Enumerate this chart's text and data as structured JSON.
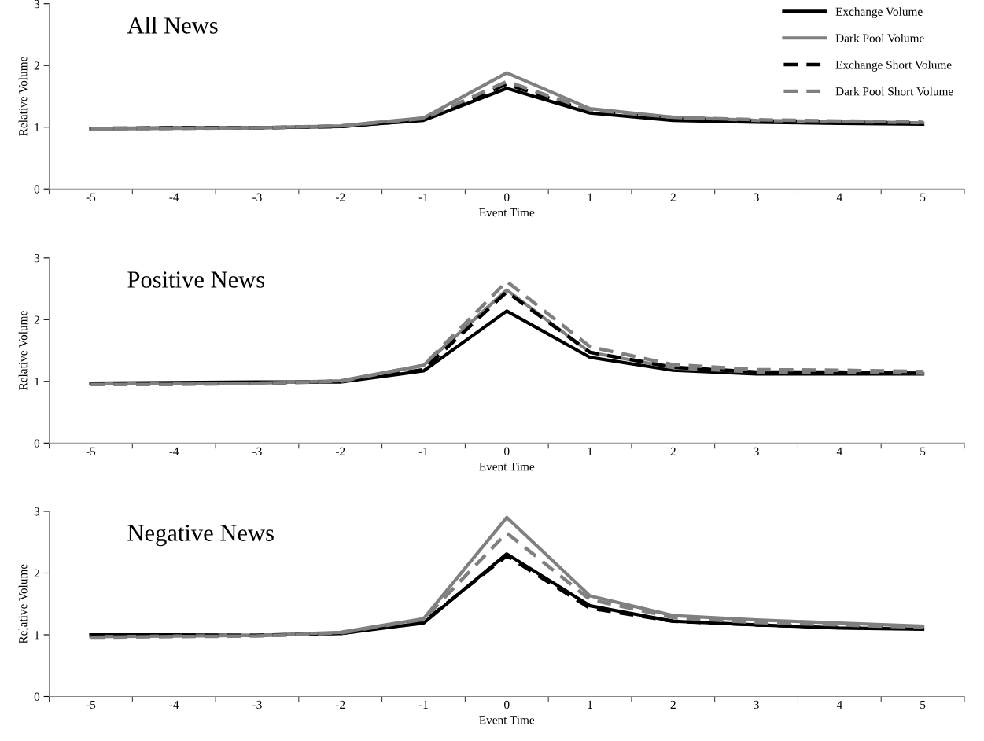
{
  "chart_data": [
    {
      "type": "line",
      "title": "All News",
      "xlabel": "Event Time",
      "ylabel": "Relative Volume",
      "categories": [
        "-5",
        "-4",
        "-3",
        "-2",
        "-1",
        "0",
        "1",
        "2",
        "3",
        "4",
        "5"
      ],
      "ylim": [
        0,
        3
      ],
      "yticks": [
        0,
        1,
        2,
        3
      ],
      "grid": false,
      "legend": "top right",
      "marker": "none",
      "series": [
        {
          "name": "Exchange Volume",
          "color": "#000000",
          "line_style": "solid",
          "values": [
            0.98,
            0.99,
            0.99,
            1.01,
            1.11,
            1.63,
            1.23,
            1.11,
            1.08,
            1.06,
            1.05
          ]
        },
        {
          "name": "Dark Pool Volume",
          "color": "#808080",
          "line_style": "solid",
          "values": [
            0.97,
            0.98,
            0.99,
            1.02,
            1.15,
            1.88,
            1.3,
            1.16,
            1.11,
            1.09,
            1.07
          ]
        },
        {
          "name": "Exchange Short Volume",
          "color": "#000000",
          "line_style": "dashed",
          "values": [
            0.98,
            0.99,
            0.99,
            1.01,
            1.12,
            1.7,
            1.25,
            1.13,
            1.1,
            1.08,
            1.06
          ]
        },
        {
          "name": "Dark Pool Short Volume",
          "color": "#808080",
          "line_style": "dashed",
          "values": [
            0.97,
            0.98,
            0.99,
            1.02,
            1.14,
            1.74,
            1.28,
            1.16,
            1.12,
            1.1,
            1.08
          ]
        }
      ]
    },
    {
      "type": "line",
      "title": "Positive News",
      "xlabel": "Event Time",
      "ylabel": "Relative Volume",
      "categories": [
        "-5",
        "-4",
        "-3",
        "-2",
        "-1",
        "0",
        "1",
        "2",
        "3",
        "4",
        "5"
      ],
      "ylim": [
        0,
        3
      ],
      "yticks": [
        0,
        1,
        2,
        3
      ],
      "grid": false,
      "legend": false,
      "marker": "none",
      "series": [
        {
          "color": "#000000",
          "line_style": "solid",
          "values": [
            0.97,
            0.98,
            0.99,
            0.99,
            1.17,
            2.14,
            1.39,
            1.18,
            1.12,
            1.12,
            1.12
          ]
        },
        {
          "color": "#808080",
          "line_style": "solid",
          "values": [
            0.96,
            0.96,
            0.97,
            1.01,
            1.26,
            2.48,
            1.47,
            1.22,
            1.15,
            1.15,
            1.13
          ]
        },
        {
          "color": "#000000",
          "line_style": "dashed",
          "values": [
            0.96,
            0.96,
            0.97,
            1.0,
            1.19,
            2.45,
            1.47,
            1.23,
            1.15,
            1.15,
            1.13
          ]
        },
        {
          "color": "#808080",
          "line_style": "dashed",
          "values": [
            0.95,
            0.95,
            0.97,
            1.0,
            1.26,
            2.62,
            1.56,
            1.27,
            1.19,
            1.18,
            1.16
          ]
        }
      ]
    },
    {
      "type": "line",
      "title": "Negative News",
      "xlabel": "Event Time",
      "ylabel": "Relative Volume",
      "categories": [
        "-5",
        "-4",
        "-3",
        "-2",
        "-1",
        "0",
        "1",
        "2",
        "3",
        "4",
        "5"
      ],
      "ylim": [
        0,
        3
      ],
      "yticks": [
        0,
        1,
        2,
        3
      ],
      "grid": false,
      "legend": false,
      "marker": "none",
      "series": [
        {
          "color": "#000000",
          "line_style": "solid",
          "values": [
            1.0,
            1.0,
            0.99,
            1.02,
            1.19,
            2.31,
            1.47,
            1.22,
            1.16,
            1.11,
            1.09
          ]
        },
        {
          "color": "#808080",
          "line_style": "solid",
          "values": [
            0.97,
            0.98,
            0.99,
            1.04,
            1.26,
            2.9,
            1.63,
            1.31,
            1.24,
            1.19,
            1.14
          ]
        },
        {
          "color": "#000000",
          "line_style": "dashed",
          "values": [
            0.99,
            0.99,
            0.99,
            1.02,
            1.21,
            2.28,
            1.43,
            1.22,
            1.16,
            1.12,
            1.1
          ]
        },
        {
          "color": "#808080",
          "line_style": "dashed",
          "values": [
            0.96,
            0.97,
            0.98,
            1.03,
            1.25,
            2.65,
            1.57,
            1.28,
            1.2,
            1.16,
            1.12
          ]
        }
      ]
    }
  ]
}
